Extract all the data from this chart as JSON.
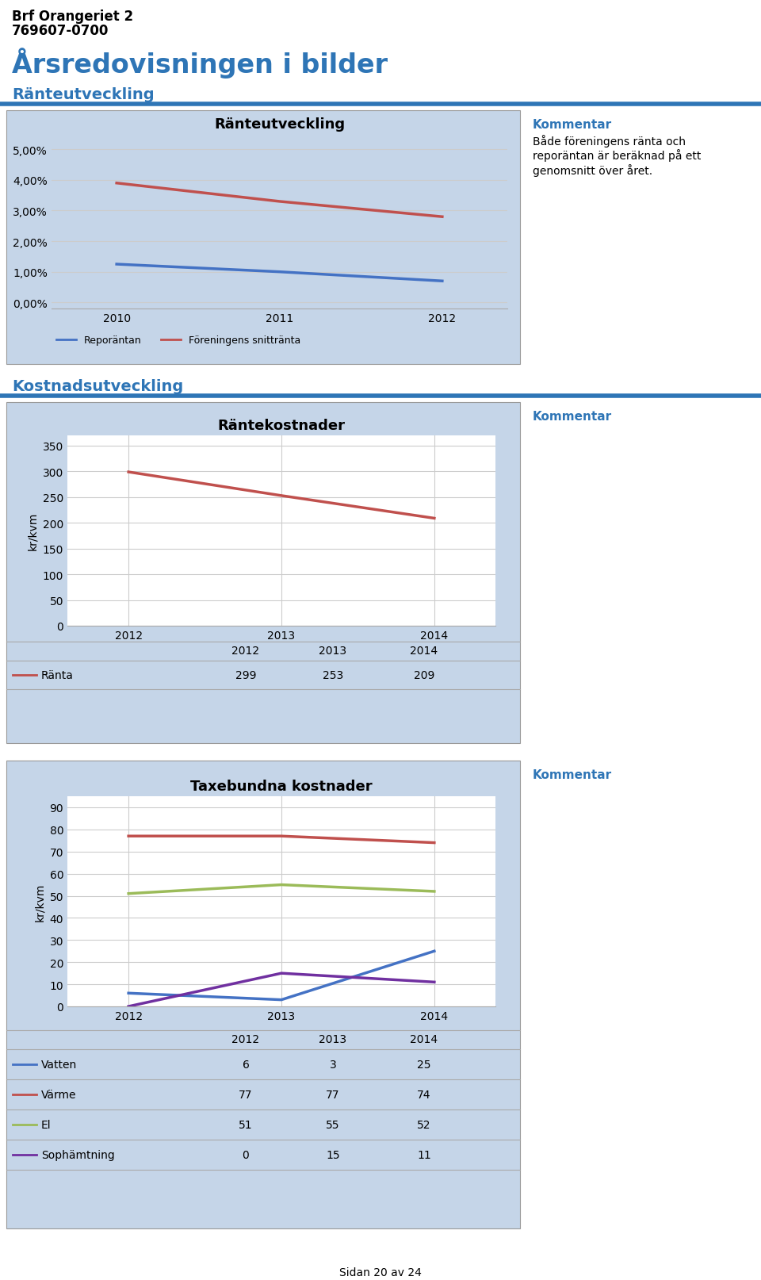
{
  "page_title_line1": "Brf Orangeriet 2",
  "page_title_line2": "769607-0700",
  "section1_title": "Årsredovisningen i bilder",
  "section2_title": "Ränteutveckling",
  "section3_title": "Kostnadsutveckling",
  "chart1_title": "Ränteutveckling",
  "chart1_years": [
    2010,
    2011,
    2012
  ],
  "chart1_reporantan": [
    0.0125,
    0.01,
    0.007
  ],
  "chart1_foreningens": [
    0.039,
    0.033,
    0.028
  ],
  "chart1_yticks": [
    0.0,
    0.01,
    0.02,
    0.03,
    0.04,
    0.05
  ],
  "chart1_yticklabels": [
    "0,00%",
    "1,00%",
    "2,00%",
    "3,00%",
    "4,00%",
    "5,00%"
  ],
  "chart1_legend1": "Reporäntan",
  "chart1_legend2": "Föreningens snittränta",
  "chart1_comment_title": "Kommentar",
  "chart1_comment_text": "Både föreningens ränta och\nreporäntan är beräknad på ett\ngenomsnitt över året.",
  "chart2_title": "Räntekostnader",
  "chart2_years": [
    2012,
    2013,
    2014
  ],
  "chart2_ranta": [
    299,
    253,
    209
  ],
  "chart2_yticks": [
    0,
    50,
    100,
    150,
    200,
    250,
    300,
    350
  ],
  "chart2_ylabel": "kr/kvm",
  "chart2_legend": "Ränta",
  "chart2_comment_title": "Kommentar",
  "chart3_title": "Taxebundna kostnader",
  "chart3_years": [
    2012,
    2013,
    2014
  ],
  "chart3_vatten": [
    6,
    3,
    25
  ],
  "chart3_varme": [
    77,
    77,
    74
  ],
  "chart3_el": [
    51,
    55,
    52
  ],
  "chart3_sophamtning": [
    0,
    15,
    11
  ],
  "chart3_yticks": [
    0,
    10,
    20,
    30,
    40,
    50,
    60,
    70,
    80,
    90
  ],
  "chart3_ylabel": "kr/kvm",
  "chart3_comment_title": "Kommentar",
  "footer": "Sidan 20 av 24",
  "bg_color": "#c5d5e8",
  "chart_inner_bg": "#ffffff",
  "header_blue": "#1f487c",
  "section_blue": "#2e75b6",
  "line_color_repo": "#4472c4",
  "line_color_forening": "#c0504d",
  "line_color_ranta": "#c0504d",
  "line_color_vatten": "#4472c4",
  "line_color_varme": "#c0504d",
  "line_color_el": "#9bbb59",
  "line_color_soph": "#7030a0"
}
